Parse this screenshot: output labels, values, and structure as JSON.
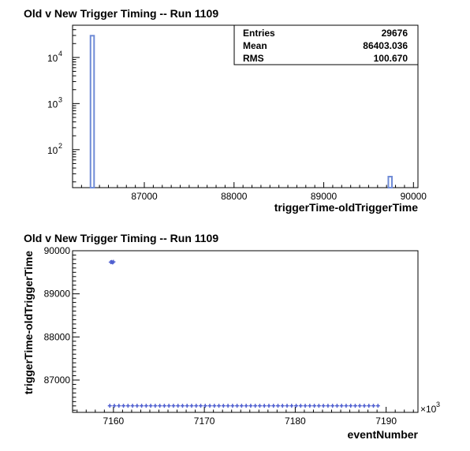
{
  "chart_data": [
    {
      "type": "histogram",
      "title": "Old v New Trigger Timing -- Run 1109",
      "xlabel": "triggerTime-oldTriggerTime",
      "ylabel": "",
      "xlim": [
        86200,
        90050
      ],
      "ylim": [
        15,
        50000
      ],
      "yscale": "log",
      "xticks": [
        87000,
        88000,
        89000,
        90000
      ],
      "yticks": [
        {
          "value": 100,
          "base": "10",
          "exp": "2"
        },
        {
          "value": 1000,
          "base": "10",
          "exp": "3"
        },
        {
          "value": 10000,
          "base": "10",
          "exp": "4"
        }
      ],
      "bins": [
        {
          "lo": 86400,
          "hi": 86440,
          "count": 29650
        },
        {
          "lo": 89720,
          "hi": 89760,
          "count": 26
        }
      ],
      "stats": [
        {
          "label": "Entries",
          "value": "29676"
        },
        {
          "label": "Mean",
          "value": "86403.036"
        },
        {
          "label": "RMS",
          "value": "100.670"
        }
      ],
      "colors": {
        "bar": "#6f8bd6",
        "axis": "#000000"
      }
    },
    {
      "type": "scatter",
      "title": "Old v New Trigger Timing -- Run 1109",
      "xlabel": "eventNumber",
      "ylabel": "triggerTime-oldTriggerTime",
      "x_multiplier": "×10",
      "x_multiplier_exp": "3",
      "xlim": [
        7155.5,
        7193.5
      ],
      "ylim": [
        86250,
        90000
      ],
      "xticks": [
        7160,
        7170,
        7180,
        7190
      ],
      "yticks": [
        87000,
        88000,
        89000,
        90000
      ],
      "series": [
        {
          "x_start": 7159.6,
          "x_end": 7189.5,
          "y": 86403,
          "note_step": 0.5
        },
        {
          "points": [
            [
              7159.7,
              89735
            ],
            [
              7159.8,
              89740
            ],
            [
              7159.9,
              89728
            ],
            [
              7160.0,
              89742
            ]
          ]
        }
      ],
      "colors": {
        "marker": "#4f5fd0",
        "axis": "#000000"
      }
    }
  ]
}
